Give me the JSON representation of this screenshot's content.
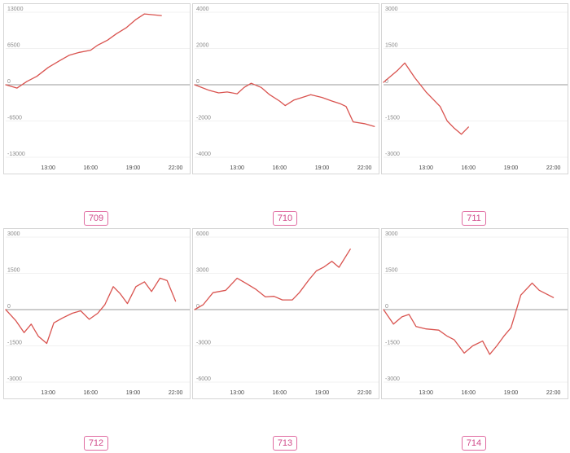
{
  "chart_data": [
    {
      "type": "line",
      "label": "709",
      "ylim": [
        -13000,
        13000
      ],
      "yticks": [
        13000,
        6500,
        0,
        -6500,
        -13000
      ],
      "ytick_labels": [
        "13000",
        "6500",
        "0",
        "-6500",
        "-13000"
      ],
      "xlim": [
        10,
        23
      ],
      "xticks": [
        13,
        16,
        19,
        22
      ],
      "xtick_labels": [
        "13:00",
        "16:00",
        "19:00",
        "22:00"
      ],
      "grid": true,
      "x": [
        10,
        10.8,
        11.5,
        12.2,
        13,
        13.8,
        14.5,
        15.2,
        16,
        16.5,
        17.2,
        17.8,
        18.5,
        19.2,
        19.8,
        21
      ],
      "y": [
        0,
        -600,
        600,
        1500,
        3100,
        4300,
        5300,
        5800,
        6200,
        7100,
        8000,
        9100,
        10200,
        11700,
        12700,
        12400
      ]
    },
    {
      "type": "line",
      "label": "710",
      "ylim": [
        -4000,
        4000
      ],
      "yticks": [
        4000,
        2000,
        0,
        -2000,
        -4000
      ],
      "ytick_labels": [
        "4000",
        "2000",
        "0",
        "-2000",
        "-4000"
      ],
      "xlim": [
        10,
        23
      ],
      "xticks": [
        13,
        16,
        19,
        22
      ],
      "xtick_labels": [
        "13:00",
        "16:00",
        "19:00",
        "22:00"
      ],
      "grid": true,
      "x": [
        10,
        11,
        11.7,
        12.3,
        13,
        13.5,
        14,
        14.7,
        15.3,
        16,
        16.4,
        17,
        17.6,
        18.2,
        19,
        19.7,
        20.3,
        20.7,
        21.2,
        22,
        22.7
      ],
      "y": [
        0,
        -300,
        -450,
        -400,
        -500,
        -150,
        80,
        -150,
        -550,
        -900,
        -1150,
        -850,
        -700,
        -550,
        -700,
        -900,
        -1050,
        -1200,
        -2050,
        -2150,
        -2300
      ]
    },
    {
      "type": "line",
      "label": "711",
      "ylim": [
        -3000,
        3000
      ],
      "yticks": [
        3000,
        1500,
        0,
        -1500,
        -3000
      ],
      "ytick_labels": [
        "3000",
        "1500",
        "0",
        "-1500",
        "-3000"
      ],
      "xlim": [
        10,
        23
      ],
      "xticks": [
        13,
        16,
        19,
        22
      ],
      "xtick_labels": [
        "13:00",
        "16:00",
        "19:00",
        "22:00"
      ],
      "grid": true,
      "x": [
        10,
        11,
        11.5,
        12.2,
        13,
        14,
        14.5,
        15,
        15.5,
        16
      ],
      "y": [
        100,
        600,
        900,
        300,
        -300,
        -900,
        -1500,
        -1800,
        -2050,
        -1750
      ]
    },
    {
      "type": "line",
      "label": "712",
      "ylim": [
        -3000,
        3000
      ],
      "yticks": [
        3000,
        1500,
        0,
        -1500,
        -3000
      ],
      "ytick_labels": [
        "3000",
        "1500",
        "0",
        "-1500",
        "-3000"
      ],
      "xlim": [
        10,
        23
      ],
      "xticks": [
        13,
        16,
        19,
        22
      ],
      "xtick_labels": [
        "13:00",
        "16:00",
        "19:00",
        "22:00"
      ],
      "grid": true,
      "x": [
        10,
        10.7,
        11.3,
        11.8,
        12.3,
        12.9,
        13.4,
        14,
        14.7,
        15.3,
        15.9,
        16.5,
        17,
        17.6,
        18.1,
        18.6,
        19.2,
        19.8,
        20.3,
        20.9,
        21.4,
        22
      ],
      "y": [
        0,
        -450,
        -950,
        -600,
        -1100,
        -1400,
        -550,
        -350,
        -150,
        -50,
        -400,
        -150,
        200,
        950,
        650,
        250,
        950,
        1150,
        750,
        1300,
        1200,
        350
      ]
    },
    {
      "type": "line",
      "label": "713",
      "ylim": [
        -6000,
        6000
      ],
      "yticks": [
        6000,
        3000,
        0,
        -3000,
        -6000
      ],
      "ytick_labels": [
        "6000",
        "3000",
        "0",
        "-3000",
        "-6000"
      ],
      "xlim": [
        10,
        23
      ],
      "xticks": [
        13,
        16,
        19,
        22
      ],
      "xtick_labels": [
        "13:00",
        "16:00",
        "19:00",
        "22:00"
      ],
      "grid": true,
      "x": [
        10,
        10.6,
        11.3,
        12.2,
        13,
        13.6,
        14.3,
        15,
        15.6,
        16.2,
        16.9,
        17.4,
        18.1,
        18.6,
        19.1,
        19.7,
        20.2,
        21
      ],
      "y": [
        0,
        400,
        1400,
        1600,
        2600,
        2200,
        1700,
        1050,
        1100,
        800,
        800,
        1400,
        2500,
        3200,
        3500,
        4000,
        3500,
        5000
      ]
    },
    {
      "type": "line",
      "label": "714",
      "ylim": [
        -3000,
        3000
      ],
      "yticks": [
        3000,
        1500,
        0,
        -1500,
        -3000
      ],
      "ytick_labels": [
        "3000",
        "1500",
        "0",
        "-1500",
        "-3000"
      ],
      "xlim": [
        10,
        23
      ],
      "xticks": [
        13,
        16,
        19,
        22
      ],
      "xtick_labels": [
        "13:00",
        "16:00",
        "19:00",
        "22:00"
      ],
      "grid": true,
      "x": [
        10,
        10.7,
        11.3,
        11.8,
        12.3,
        13,
        13.9,
        14.5,
        15,
        15.7,
        16.3,
        17,
        17.5,
        18,
        18.5,
        19,
        19.7,
        20.5,
        21,
        22
      ],
      "y": [
        0,
        -600,
        -300,
        -200,
        -700,
        -800,
        -850,
        -1100,
        -1250,
        -1800,
        -1500,
        -1300,
        -1850,
        -1500,
        -1100,
        -750,
        600,
        1100,
        800,
        500
      ]
    }
  ]
}
